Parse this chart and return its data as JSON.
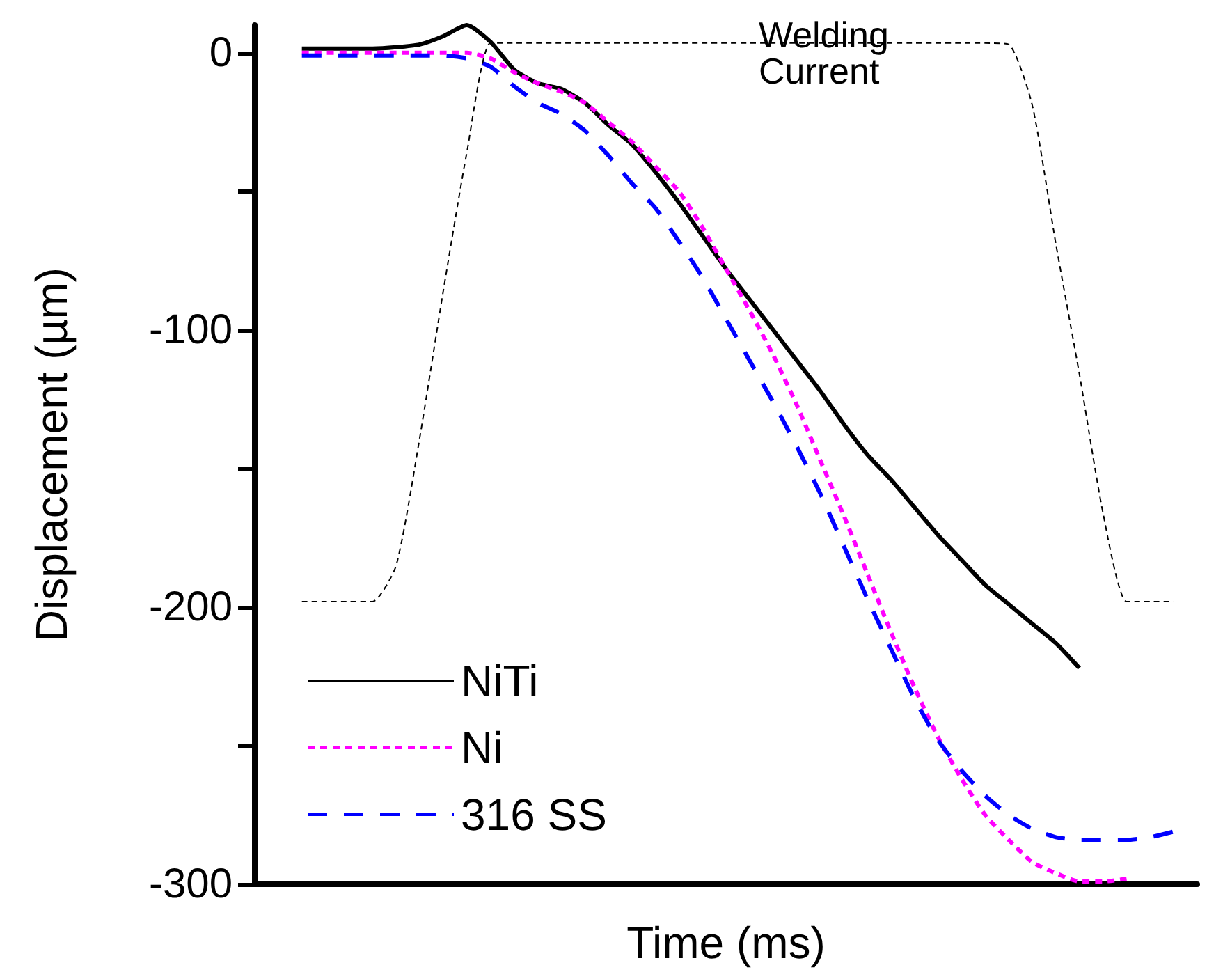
{
  "chart_data": {
    "type": "line",
    "xlabel": "Time (ms)",
    "ylabel": "Displacement (µm)",
    "annotations": [
      "Welding Current"
    ],
    "categories": [
      null,
      null,
      null,
      null,
      null,
      null,
      null,
      null,
      null,
      null,
      null,
      null,
      null,
      null,
      null,
      null,
      null,
      null,
      null,
      null,
      null,
      null,
      null,
      null,
      null,
      null,
      null,
      null,
      null,
      null,
      null,
      null,
      null,
      null,
      null,
      null,
      null,
      null,
      null,
      null,
      null
    ],
    "series": [
      {
        "name": "NiTi",
        "color": "#000000",
        "line_style": "solid",
        "values": [
          null,
          null,
          1.5,
          1.5,
          1.5,
          1.5,
          2,
          3,
          6,
          10,
          4,
          -6,
          -11,
          -13,
          -18,
          -26,
          -33,
          -43,
          -54,
          -66,
          -78,
          -89,
          -100,
          -111,
          -122,
          -134,
          -145,
          -154,
          -164,
          -174,
          -183,
          -192,
          -199,
          -206,
          -213,
          -222,
          null,
          null,
          null,
          null,
          null
        ]
      },
      {
        "name": "Ni",
        "color": "#ff00ff",
        "line_style": "dotted",
        "values": [
          null,
          null,
          0,
          0,
          0,
          0,
          0,
          0,
          0,
          0,
          -2,
          -7,
          -11,
          -14,
          -18,
          -25,
          -32,
          -41,
          -50,
          -63,
          -78,
          -93,
          -109,
          -127,
          -147,
          -167,
          -188,
          -209,
          -229,
          -247,
          -262,
          -275,
          -284,
          -292,
          -296,
          -299,
          -299,
          -298,
          null,
          null,
          null
        ]
      },
      {
        "name": "316 SS",
        "color": "#0000ff",
        "line_style": "dashed",
        "values": [
          null,
          null,
          -1,
          -1,
          -1,
          -1,
          -1,
          -1,
          -1,
          -2,
          -5,
          -12,
          -18,
          -22,
          -28,
          -37,
          -47,
          -56,
          -68,
          -81,
          -96,
          -111,
          -126,
          -142,
          -159,
          -178,
          -197,
          -215,
          -233,
          -248,
          -259,
          -268,
          -275,
          -280,
          -283,
          -284,
          -284,
          -284,
          -283,
          -281,
          null
        ]
      },
      {
        "color": "#000000",
        "line_style": "dashed",
        "values": [
          null,
          null,
          -198,
          -198,
          -198,
          -198,
          -185,
          -139,
          -86,
          -36,
          3.5,
          3.5,
          3.5,
          3.5,
          3.5,
          3.5,
          3.5,
          3.5,
          3.5,
          3.5,
          3.5,
          3.5,
          3.5,
          3.5,
          3.5,
          3.5,
          3.5,
          3.5,
          3.5,
          3.5,
          3.5,
          3.5,
          3,
          -19,
          -69,
          -116,
          -166,
          -198,
          -198,
          -198,
          null
        ]
      }
    ],
    "ylim": [
      -300,
      10
    ],
    "yticks": [
      0,
      {
        "value": -50,
        "label": null
      },
      -100,
      {
        "value": -150,
        "label": null
      },
      -200,
      {
        "value": -250,
        "label": null
      },
      -300
    ],
    "tick_labels": "y",
    "legend": "bottom left",
    "marker": "none",
    "grid": false
  }
}
